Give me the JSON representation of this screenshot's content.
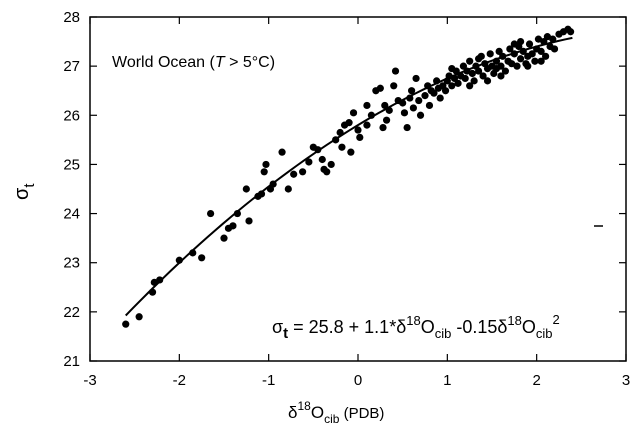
{
  "chart_data": {
    "type": "scatter",
    "annotation_label": "World Ocean (",
    "annotation_var": "T",
    "annotation_rest": " > 5°C)",
    "xlabel_main": "δ",
    "xlabel_sup": "18",
    "xlabel_o": "O",
    "xlabel_sub": "cib",
    "xlabel_unit": " (PDB)",
    "ylabel_main": "σ",
    "ylabel_sub": "t",
    "equation": {
      "lhs": "σ",
      "lhs_sub": "t",
      "part1": " = 25.8 + 1.1*δ",
      "sup1": "18",
      "o1": "O",
      "sub1": "cib",
      "part2": " -0.15δ",
      "sup2": "18",
      "o2": "O",
      "sub2": "cib",
      "sup3": "2"
    },
    "xlim": [
      -3,
      3
    ],
    "ylim": [
      21,
      28
    ],
    "xticks": [
      -3,
      -2,
      -1,
      0,
      1,
      2,
      3
    ],
    "yticks": [
      21,
      22,
      23,
      24,
      25,
      26,
      27,
      28
    ],
    "grid": false,
    "fit": {
      "a": 25.8,
      "b": 1.1,
      "c": -0.15,
      "x_range": [
        -2.6,
        2.4
      ]
    },
    "points": [
      [
        -2.6,
        21.75
      ],
      [
        -2.45,
        21.9
      ],
      [
        -2.3,
        22.4
      ],
      [
        -2.28,
        22.6
      ],
      [
        -2.22,
        22.65
      ],
      [
        -2.0,
        23.05
      ],
      [
        -1.85,
        23.2
      ],
      [
        -1.75,
        23.1
      ],
      [
        -1.65,
        24.0
      ],
      [
        -1.5,
        23.5
      ],
      [
        -1.45,
        23.7
      ],
      [
        -1.4,
        23.75
      ],
      [
        -1.35,
        24.0
      ],
      [
        -1.25,
        24.5
      ],
      [
        -1.22,
        23.85
      ],
      [
        -1.12,
        24.35
      ],
      [
        -1.08,
        24.4
      ],
      [
        -1.05,
        24.85
      ],
      [
        -1.03,
        25.0
      ],
      [
        -0.98,
        24.5
      ],
      [
        -0.95,
        24.6
      ],
      [
        -0.85,
        25.25
      ],
      [
        -0.78,
        24.5
      ],
      [
        -0.72,
        24.8
      ],
      [
        -0.62,
        24.85
      ],
      [
        -0.55,
        25.05
      ],
      [
        -0.5,
        25.35
      ],
      [
        -0.45,
        25.3
      ],
      [
        -0.4,
        25.1
      ],
      [
        -0.38,
        24.9
      ],
      [
        -0.35,
        24.85
      ],
      [
        -0.3,
        25.0
      ],
      [
        -0.25,
        25.5
      ],
      [
        -0.18,
        25.35
      ],
      [
        -0.15,
        25.8
      ],
      [
        -0.1,
        25.85
      ],
      [
        -0.05,
        26.05
      ],
      [
        0.0,
        25.7
      ],
      [
        0.02,
        25.55
      ],
      [
        -0.08,
        25.25
      ],
      [
        0.1,
        25.8
      ],
      [
        0.15,
        26.0
      ],
      [
        0.2,
        26.5
      ],
      [
        0.25,
        26.55
      ],
      [
        0.3,
        26.2
      ],
      [
        0.28,
        25.75
      ],
      [
        0.32,
        25.9
      ],
      [
        0.35,
        26.1
      ],
      [
        0.4,
        26.6
      ],
      [
        0.45,
        26.3
      ],
      [
        0.5,
        26.25
      ],
      [
        0.52,
        26.05
      ],
      [
        0.55,
        25.75
      ],
      [
        0.58,
        26.35
      ],
      [
        0.6,
        26.5
      ],
      [
        0.65,
        26.75
      ],
      [
        0.68,
        26.3
      ],
      [
        0.7,
        26.0
      ],
      [
        0.75,
        26.4
      ],
      [
        0.78,
        26.6
      ],
      [
        0.8,
        26.2
      ],
      [
        0.82,
        26.5
      ],
      [
        0.85,
        26.45
      ],
      [
        0.88,
        26.7
      ],
      [
        0.9,
        26.55
      ],
      [
        0.92,
        26.35
      ],
      [
        0.95,
        26.6
      ],
      [
        0.98,
        26.5
      ],
      [
        1.0,
        26.7
      ],
      [
        1.02,
        26.8
      ],
      [
        1.05,
        26.6
      ],
      [
        1.08,
        26.75
      ],
      [
        1.1,
        26.9
      ],
      [
        1.12,
        26.65
      ],
      [
        1.15,
        26.8
      ],
      [
        1.18,
        27.0
      ],
      [
        1.2,
        26.75
      ],
      [
        1.22,
        26.9
      ],
      [
        1.25,
        27.1
      ],
      [
        1.28,
        26.85
      ],
      [
        1.3,
        26.7
      ],
      [
        1.32,
        27.0
      ],
      [
        1.35,
        26.9
      ],
      [
        1.38,
        27.2
      ],
      [
        1.4,
        26.8
      ],
      [
        1.42,
        27.05
      ],
      [
        1.45,
        26.95
      ],
      [
        1.48,
        27.25
      ],
      [
        1.5,
        27.0
      ],
      [
        1.52,
        26.85
      ],
      [
        1.55,
        27.1
      ],
      [
        1.58,
        27.3
      ],
      [
        1.6,
        27.0
      ],
      [
        1.62,
        27.2
      ],
      [
        1.65,
        26.9
      ],
      [
        1.68,
        27.1
      ],
      [
        1.7,
        27.35
      ],
      [
        1.72,
        27.05
      ],
      [
        1.75,
        27.25
      ],
      [
        1.78,
        27.0
      ],
      [
        1.8,
        27.4
      ],
      [
        1.82,
        27.15
      ],
      [
        1.85,
        27.3
      ],
      [
        1.88,
        27.05
      ],
      [
        1.9,
        27.2
      ],
      [
        1.92,
        27.45
      ],
      [
        1.95,
        27.25
      ],
      [
        1.98,
        27.1
      ],
      [
        2.0,
        27.35
      ],
      [
        2.02,
        27.55
      ],
      [
        2.05,
        27.3
      ],
      [
        2.08,
        27.5
      ],
      [
        2.1,
        27.2
      ],
      [
        2.12,
        27.6
      ],
      [
        2.15,
        27.4
      ],
      [
        2.18,
        27.55
      ],
      [
        2.2,
        27.35
      ],
      [
        2.25,
        27.65
      ],
      [
        2.3,
        27.7
      ],
      [
        2.35,
        27.75
      ],
      [
        2.38,
        27.7
      ],
      [
        1.25,
        26.6
      ],
      [
        1.45,
        26.7
      ],
      [
        1.6,
        26.8
      ],
      [
        1.75,
        27.45
      ],
      [
        1.9,
        27.0
      ],
      [
        0.1,
        26.2
      ],
      [
        -0.2,
        25.65
      ],
      [
        0.42,
        26.9
      ],
      [
        0.62,
        26.15
      ],
      [
        1.05,
        26.95
      ],
      [
        1.35,
        27.15
      ],
      [
        1.55,
        26.95
      ],
      [
        1.82,
        27.5
      ],
      [
        2.05,
        27.1
      ]
    ]
  }
}
